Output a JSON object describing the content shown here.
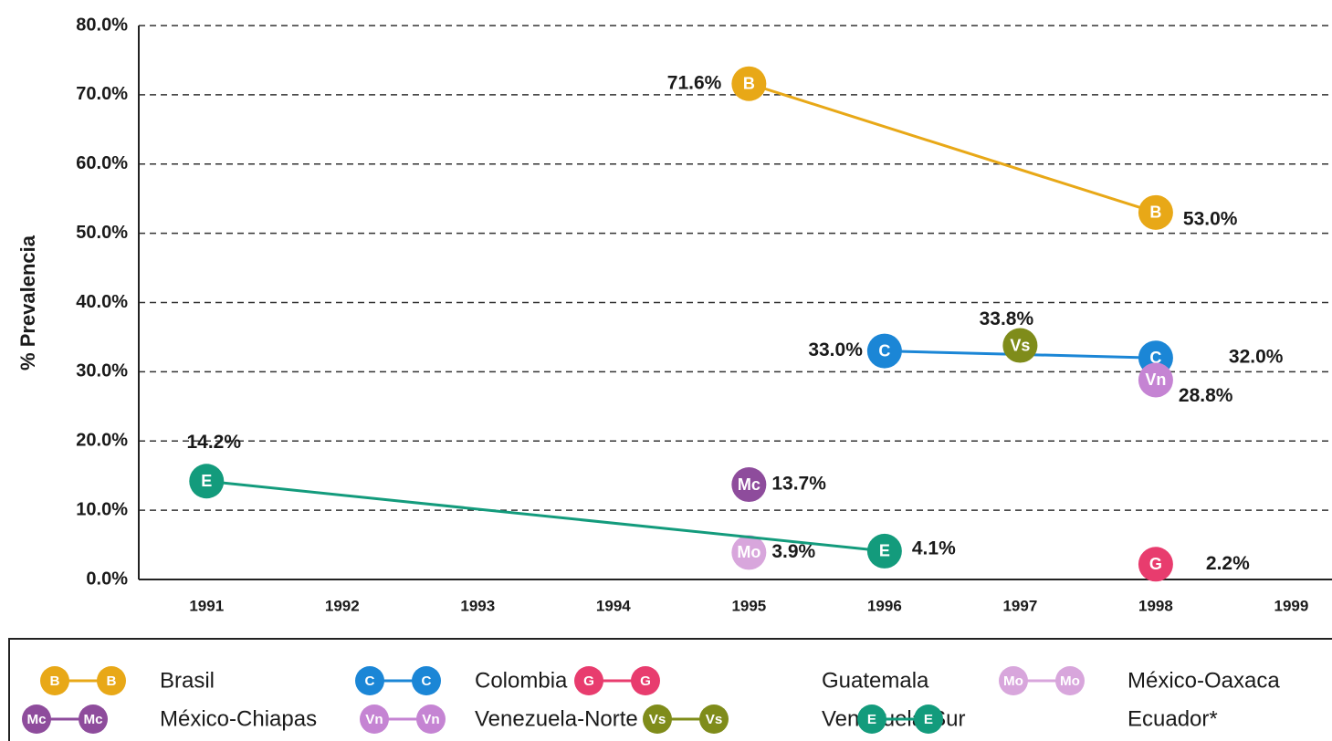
{
  "chart_data": {
    "type": "line",
    "y_label": "% Prevalencia",
    "xlim": [
      1990.5,
      1999.3
    ],
    "xticks": [
      1991,
      1992,
      1993,
      1994,
      1995,
      1996,
      1997,
      1998,
      1999
    ],
    "ylim": [
      0,
      80
    ],
    "yticks": [
      {
        "value": 0,
        "label": "0.0%"
      },
      {
        "value": 10,
        "label": "10.0%"
      },
      {
        "value": 20,
        "label": "20.0%"
      },
      {
        "value": 30,
        "label": "30.0%"
      },
      {
        "value": 40,
        "label": "40.0%"
      },
      {
        "value": 50,
        "label": "50.0%"
      },
      {
        "value": 60,
        "label": "60.0%"
      },
      {
        "value": 70,
        "label": "70.0%"
      },
      {
        "value": 80,
        "label": "80.0%"
      }
    ],
    "grid": true,
    "series": [
      {
        "name": "Brasil",
        "marker": "B",
        "color": "#e8a817",
        "x": [
          1995,
          1998
        ],
        "values": [
          71.6,
          53.0
        ],
        "value_labels": [
          "71.6%",
          "53.0%"
        ]
      },
      {
        "name": "Colombia",
        "marker": "C",
        "color": "#1b86d6",
        "x": [
          1996,
          1998
        ],
        "values": [
          33.0,
          32.0
        ],
        "value_labels": [
          "33.0%",
          "32.0%"
        ]
      },
      {
        "name": "Guatemala",
        "marker": "G",
        "color": "#e83c6e",
        "x": [
          1998
        ],
        "values": [
          2.2
        ],
        "value_labels": [
          "2.2%"
        ]
      },
      {
        "name": "México-Oaxaca",
        "marker": "Mo",
        "color": "#d8a6dc",
        "x": [
          1995
        ],
        "values": [
          3.9
        ],
        "value_labels": [
          "3.9%"
        ]
      },
      {
        "name": "México-Chiapas",
        "marker": "Mc",
        "color": "#8e4c9c",
        "x": [
          1995
        ],
        "values": [
          13.7
        ],
        "value_labels": [
          "13.7%"
        ]
      },
      {
        "name": "Venezuela-Norte",
        "marker": "Vn",
        "color": "#c584d3",
        "x": [
          1998
        ],
        "values": [
          28.8
        ],
        "value_labels": [
          "28.8%"
        ]
      },
      {
        "name": "Venezuela-Sur",
        "marker": "Vs",
        "color": "#7f8c1a",
        "x": [
          1997
        ],
        "values": [
          33.8
        ],
        "value_labels": [
          "33.8%"
        ]
      },
      {
        "name": "Ecuador*",
        "marker": "E",
        "color": "#139b7c",
        "x": [
          1991,
          1996
        ],
        "values": [
          14.2,
          4.1
        ],
        "value_labels": [
          "14.2%",
          "4.1%"
        ]
      }
    ]
  }
}
